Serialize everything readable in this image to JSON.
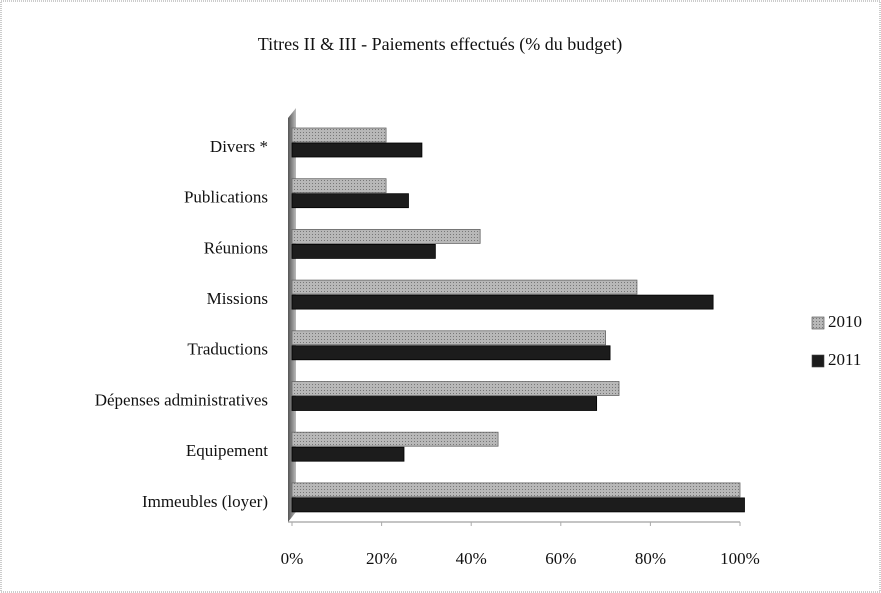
{
  "chart_data": {
    "type": "bar",
    "orientation": "horizontal",
    "title": "Titres II & III - Paiements effectués (% du budget)",
    "categories": [
      "Divers *",
      "Publications",
      "Réunions",
      "Missions",
      "Traductions",
      "Dépenses administratives",
      "Equipement",
      "Immeubles (loyer)"
    ],
    "series": [
      {
        "name": "2010",
        "color": "#a6a6a6",
        "values": [
          21,
          21,
          42,
          77,
          70,
          73,
          46,
          100
        ]
      },
      {
        "name": "2011",
        "color": "#1c1c1c",
        "values": [
          29,
          26,
          32,
          94,
          71,
          68,
          25,
          101
        ]
      }
    ],
    "xlim": [
      0,
      100
    ],
    "xticks": [
      {
        "value": 0,
        "label": "0%"
      },
      {
        "value": 20,
        "label": "20%"
      },
      {
        "value": 40,
        "label": "40%"
      },
      {
        "value": 60,
        "label": "60%"
      },
      {
        "value": 80,
        "label": "80%"
      },
      {
        "value": 100,
        "label": "100%"
      }
    ],
    "legend": "right"
  }
}
